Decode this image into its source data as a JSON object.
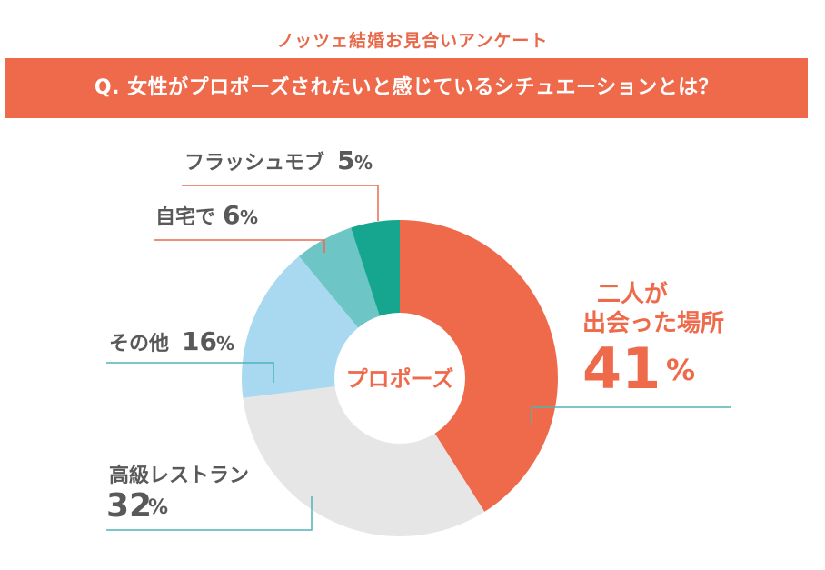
{
  "header": {
    "survey_title": "ノッツェ結婚お見合いアンケート",
    "question": "Q. 女性がプロポーズされたいと感じているシチュエーションとは？"
  },
  "center_label": "プロポーズ",
  "colors": {
    "accent": "#ee6a4b",
    "label_text": "#595959",
    "leader_orange": "#ee6a4b",
    "leader_teal": "#4fb3b6"
  },
  "chart_data": {
    "type": "pie",
    "title": "Q. 女性がプロポーズされたいと感じているシチュエーションとは？",
    "donut": true,
    "categories": [
      "二人が出会った場所",
      "高級レストラン",
      "その他",
      "自宅で",
      "フラッシュモブ"
    ],
    "values": [
      41,
      32,
      16,
      6,
      5
    ],
    "unit": "%",
    "colors": [
      "#ee6a4b",
      "#e6e6e6",
      "#a8d9f0",
      "#6dc6c5",
      "#16a58e"
    ],
    "labels": [
      {
        "text_lines": [
          "二人が",
          "出会った場所"
        ],
        "value": "41"
      },
      {
        "text_lines": [
          "高級レストラン"
        ],
        "value": "32"
      },
      {
        "text_lines": [
          "その他"
        ],
        "value": "16"
      },
      {
        "text_lines": [
          "自宅で"
        ],
        "value": "6"
      },
      {
        "text_lines": [
          "フラッシュモブ"
        ],
        "value": "5"
      }
    ],
    "percent_sign": "%"
  }
}
